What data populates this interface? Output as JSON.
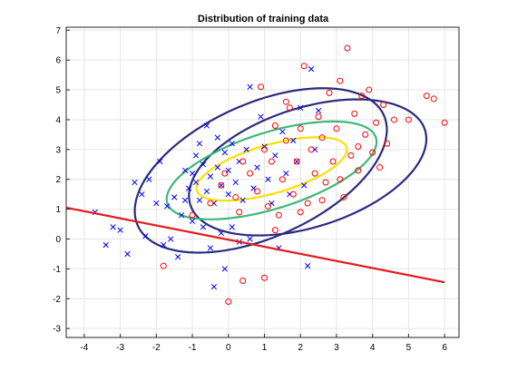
{
  "chart_data": {
    "type": "scatter",
    "title": "Distribution of training data",
    "xlabel": "",
    "ylabel": "",
    "xlim": [
      -4.5,
      6.4
    ],
    "ylim": [
      -3.3,
      7.1
    ],
    "x_ticks": [
      -4,
      -3,
      -2,
      -1,
      0,
      1,
      2,
      3,
      4,
      5,
      6
    ],
    "y_ticks": [
      -3,
      -2,
      -1,
      0,
      1,
      2,
      3,
      4,
      5,
      6,
      7
    ],
    "grid": true,
    "colors": {
      "class_a": "#0000ff",
      "class_b": "#ff0000",
      "ellipse_outer": "#2b2b7f",
      "ellipse_middle": "#3cb878",
      "ellipse_inner": "#ffe000",
      "boundary": "#e41a1c"
    },
    "series": [
      {
        "marker": "x",
        "color": "#0000ff",
        "points": [
          [
            -3.7,
            0.9
          ],
          [
            -3.4,
            -0.2
          ],
          [
            -3.2,
            0.4
          ],
          [
            -3.0,
            0.3
          ],
          [
            -2.8,
            -0.5
          ],
          [
            -2.6,
            1.9
          ],
          [
            -2.4,
            1.5
          ],
          [
            -2.3,
            0.1
          ],
          [
            -2.2,
            2.0
          ],
          [
            -2.0,
            1.2
          ],
          [
            -1.9,
            2.6
          ],
          [
            -1.8,
            -0.2
          ],
          [
            -1.7,
            1.1
          ],
          [
            -1.6,
            0.0
          ],
          [
            -1.5,
            1.4
          ],
          [
            -1.4,
            -0.6
          ],
          [
            -1.3,
            0.8
          ],
          [
            -1.2,
            1.3
          ],
          [
            -1.2,
            2.3
          ],
          [
            -1.1,
            1.7
          ],
          [
            -1.0,
            0.6
          ],
          [
            -1.0,
            2.2
          ],
          [
            -0.9,
            1.9
          ],
          [
            -0.9,
            2.8
          ],
          [
            -0.8,
            1.3
          ],
          [
            -0.8,
            3.2
          ],
          [
            -0.7,
            0.4
          ],
          [
            -0.7,
            2.5
          ],
          [
            -0.6,
            1.6
          ],
          [
            -0.6,
            3.8
          ],
          [
            -0.5,
            -0.3
          ],
          [
            -0.5,
            2.1
          ],
          [
            -0.4,
            -1.6
          ],
          [
            -0.4,
            1.2
          ],
          [
            -0.3,
            2.4
          ],
          [
            -0.3,
            3.4
          ],
          [
            -0.2,
            0.2
          ],
          [
            -0.2,
            1.8
          ],
          [
            -0.1,
            2.9
          ],
          [
            -0.1,
            -1.0
          ],
          [
            0.0,
            1.5
          ],
          [
            0.0,
            2.3
          ],
          [
            0.1,
            0.4
          ],
          [
            0.1,
            3.2
          ],
          [
            0.2,
            1.9
          ],
          [
            0.3,
            2.6
          ],
          [
            0.3,
            -0.1
          ],
          [
            0.4,
            1.3
          ],
          [
            0.5,
            3.0
          ],
          [
            0.6,
            5.1
          ],
          [
            0.6,
            0.0
          ],
          [
            0.7,
            1.7
          ],
          [
            0.8,
            2.4
          ],
          [
            0.9,
            4.1
          ],
          [
            1.0,
            3.1
          ],
          [
            1.1,
            2.0
          ],
          [
            1.2,
            1.2
          ],
          [
            1.3,
            2.8
          ],
          [
            1.4,
            -0.3
          ],
          [
            1.5,
            3.6
          ],
          [
            1.6,
            2.2
          ],
          [
            1.7,
            1.5
          ],
          [
            1.8,
            3.3
          ],
          [
            1.9,
            2.6
          ],
          [
            2.0,
            4.4
          ],
          [
            2.1,
            1.8
          ],
          [
            2.2,
            -0.9
          ],
          [
            2.3,
            5.7
          ],
          [
            2.4,
            3.0
          ],
          [
            2.5,
            4.3
          ]
        ]
      },
      {
        "marker": "o",
        "color": "#ff0000",
        "points": [
          [
            -1.8,
            -0.9
          ],
          [
            -1.0,
            0.8
          ],
          [
            -0.5,
            1.2
          ],
          [
            -0.2,
            1.8
          ],
          [
            0.0,
            -2.1
          ],
          [
            0.2,
            1.4
          ],
          [
            0.4,
            -1.4
          ],
          [
            0.4,
            2.6
          ],
          [
            0.6,
            2.2
          ],
          [
            0.8,
            1.6
          ],
          [
            0.9,
            5.1
          ],
          [
            1.0,
            3.0
          ],
          [
            1.0,
            -1.3
          ],
          [
            1.1,
            1.1
          ],
          [
            1.2,
            2.6
          ],
          [
            1.3,
            3.8
          ],
          [
            1.4,
            0.8
          ],
          [
            1.5,
            2.0
          ],
          [
            1.6,
            3.3
          ],
          [
            1.7,
            4.4
          ],
          [
            1.8,
            1.5
          ],
          [
            1.9,
            2.6
          ],
          [
            2.0,
            3.7
          ],
          [
            2.1,
            5.8
          ],
          [
            2.2,
            1.2
          ],
          [
            2.3,
            3.0
          ],
          [
            2.4,
            2.2
          ],
          [
            2.5,
            4.1
          ],
          [
            2.6,
            3.4
          ],
          [
            2.7,
            1.9
          ],
          [
            2.8,
            4.9
          ],
          [
            2.9,
            2.6
          ],
          [
            3.0,
            3.7
          ],
          [
            3.1,
            5.3
          ],
          [
            3.2,
            1.4
          ],
          [
            3.3,
            6.4
          ],
          [
            3.4,
            2.8
          ],
          [
            3.5,
            4.2
          ],
          [
            3.6,
            2.3
          ],
          [
            3.7,
            4.8
          ],
          [
            3.8,
            3.5
          ],
          [
            3.9,
            5.0
          ],
          [
            4.0,
            2.9
          ],
          [
            4.1,
            3.9
          ],
          [
            4.2,
            2.4
          ],
          [
            4.3,
            4.5
          ],
          [
            4.4,
            3.2
          ],
          [
            4.6,
            4.0
          ],
          [
            5.0,
            4.0
          ],
          [
            5.5,
            4.8
          ],
          [
            5.7,
            4.7
          ],
          [
            6.0,
            3.9
          ],
          [
            2.6,
            1.3
          ],
          [
            3.1,
            2.0
          ],
          [
            1.6,
            4.6
          ],
          [
            0.3,
            0.9
          ],
          [
            2.0,
            0.9
          ],
          [
            -0.1,
            2.2
          ],
          [
            1.3,
            0.3
          ],
          [
            3.6,
            3.1
          ]
        ]
      }
    ],
    "ellipses": [
      {
        "role": "outer-left",
        "color": "#2b2b7f",
        "cx": 0.9,
        "cy": 2.3,
        "rx": 3.9,
        "ry": 2.15,
        "angle_deg": 32
      },
      {
        "role": "outer-right",
        "color": "#2b2b7f",
        "cx": 2.2,
        "cy": 2.4,
        "rx": 3.5,
        "ry": 1.95,
        "angle_deg": 24
      },
      {
        "role": "middle",
        "color": "#3cb878",
        "cx": 1.2,
        "cy": 2.3,
        "rx": 3.1,
        "ry": 1.25,
        "angle_deg": 22
      },
      {
        "role": "inner",
        "color": "#ffe000",
        "cx": 1.2,
        "cy": 2.35,
        "rx": 2.2,
        "ry": 0.8,
        "angle_deg": 20
      }
    ],
    "boundary_line": {
      "color": "#e41a1c",
      "x": [
        -4.5,
        6.0
      ],
      "y": [
        1.05,
        -1.45
      ]
    }
  }
}
